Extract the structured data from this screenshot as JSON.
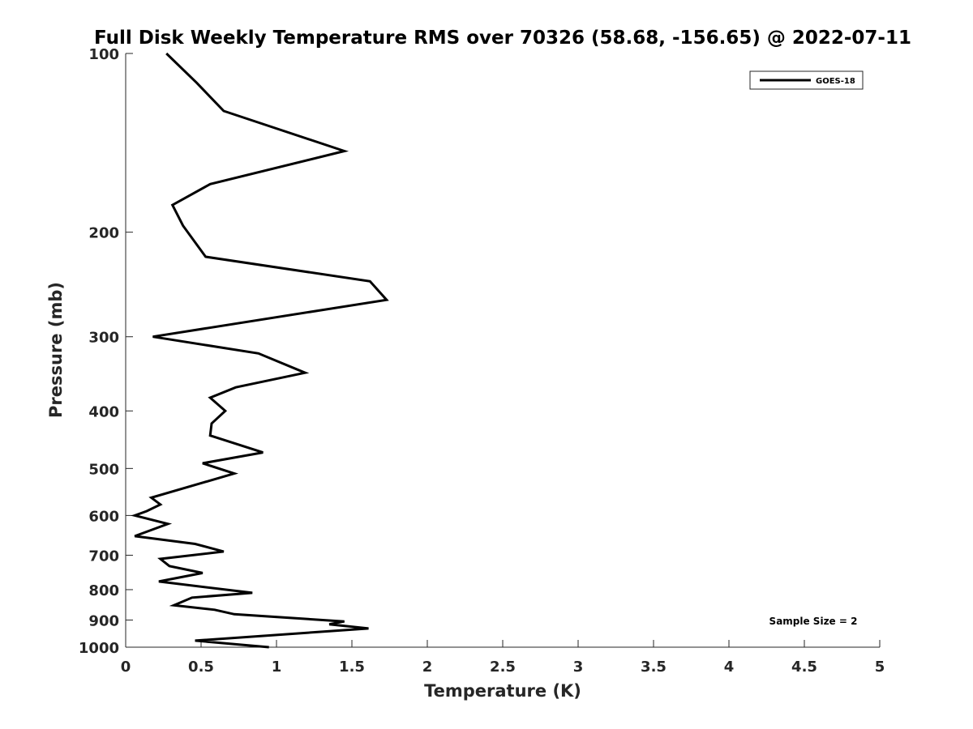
{
  "chart_data": {
    "type": "line",
    "title": "Full Disk Weekly Temperature RMS over 70326 (58.68, -156.65) @ 2022-07-11",
    "xlabel": "Temperature (K)",
    "ylabel": "Pressure (mb)",
    "xlim": [
      0,
      5
    ],
    "ylim": [
      1000,
      100
    ],
    "yscale": "log",
    "x_ticks": [
      0,
      0.5,
      1,
      1.5,
      2,
      2.5,
      3,
      3.5,
      4,
      4.5,
      5
    ],
    "x_tick_labels": [
      "0",
      "0.5",
      "1",
      "1.5",
      "2",
      "2.5",
      "3",
      "3.5",
      "4",
      "4.5",
      "5"
    ],
    "y_ticks": [
      100,
      200,
      300,
      400,
      500,
      600,
      700,
      800,
      900,
      1000
    ],
    "y_tick_labels": [
      "100",
      "200",
      "300",
      "400",
      "500",
      "600",
      "700",
      "800",
      "900",
      "1000"
    ],
    "grid": false,
    "legend_position": "top-right",
    "annotation": "Sample Size = 2",
    "series": [
      {
        "name": "GOES-18",
        "color": "#000000",
        "x": [
          0.27,
          0.47,
          0.65,
          1.45,
          0.56,
          0.31,
          0.38,
          0.53,
          1.62,
          1.73,
          0.18,
          0.88,
          1.19,
          0.73,
          0.56,
          0.66,
          0.57,
          0.56,
          0.91,
          0.51,
          0.72,
          0.17,
          0.23,
          0.14,
          0.06,
          0.28,
          0.06,
          0.46,
          0.65,
          0.23,
          0.29,
          0.51,
          0.22,
          0.84,
          0.44,
          0.32,
          0.59,
          0.72,
          1.45,
          1.35,
          1.61,
          0.46,
          0.95
        ],
        "y": [
          100,
          112,
          125,
          146,
          166,
          180,
          195,
          220,
          242,
          260,
          300,
          320,
          345,
          365,
          380,
          400,
          420,
          440,
          470,
          490,
          510,
          560,
          575,
          590,
          600,
          620,
          650,
          670,
          690,
          710,
          730,
          750,
          775,
          810,
          825,
          850,
          865,
          880,
          905,
          915,
          930,
          975,
          1000
        ]
      }
    ]
  }
}
